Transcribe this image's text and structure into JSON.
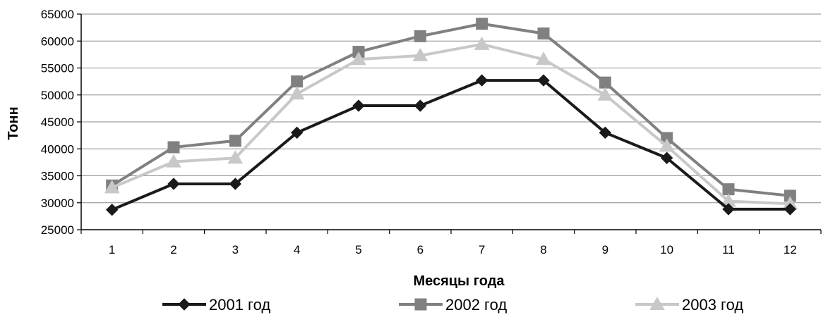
{
  "chart_data": {
    "type": "line",
    "title": "",
    "xlabel": "Месяцы года",
    "ylabel": "Тонн",
    "categories": [
      "1",
      "2",
      "3",
      "4",
      "5",
      "6",
      "7",
      "8",
      "9",
      "10",
      "11",
      "12"
    ],
    "ylim": [
      25000,
      65000
    ],
    "yticks": [
      "25000",
      "30000",
      "35000",
      "40000",
      "45000",
      "50000",
      "55000",
      "60000",
      "65000"
    ],
    "grid": true,
    "legend_position": "bottom",
    "series": [
      {
        "name": "2001 год",
        "marker": "diamond",
        "color": "#1a1a1a",
        "values": [
          28700,
          33500,
          33500,
          43000,
          48000,
          48000,
          52700,
          52700,
          43000,
          38300,
          28800,
          28800
        ]
      },
      {
        "name": "2002 год",
        "marker": "square",
        "color": "#808080",
        "values": [
          33200,
          40300,
          41500,
          52500,
          58000,
          60900,
          63200,
          61400,
          52300,
          42000,
          32500,
          31300
        ]
      },
      {
        "name": "2003 год",
        "marker": "triangle",
        "color": "#c8c8c8",
        "values": [
          32800,
          37600,
          38300,
          50200,
          56600,
          57300,
          59400,
          56600,
          50000,
          40500,
          30300,
          29800
        ]
      }
    ]
  }
}
